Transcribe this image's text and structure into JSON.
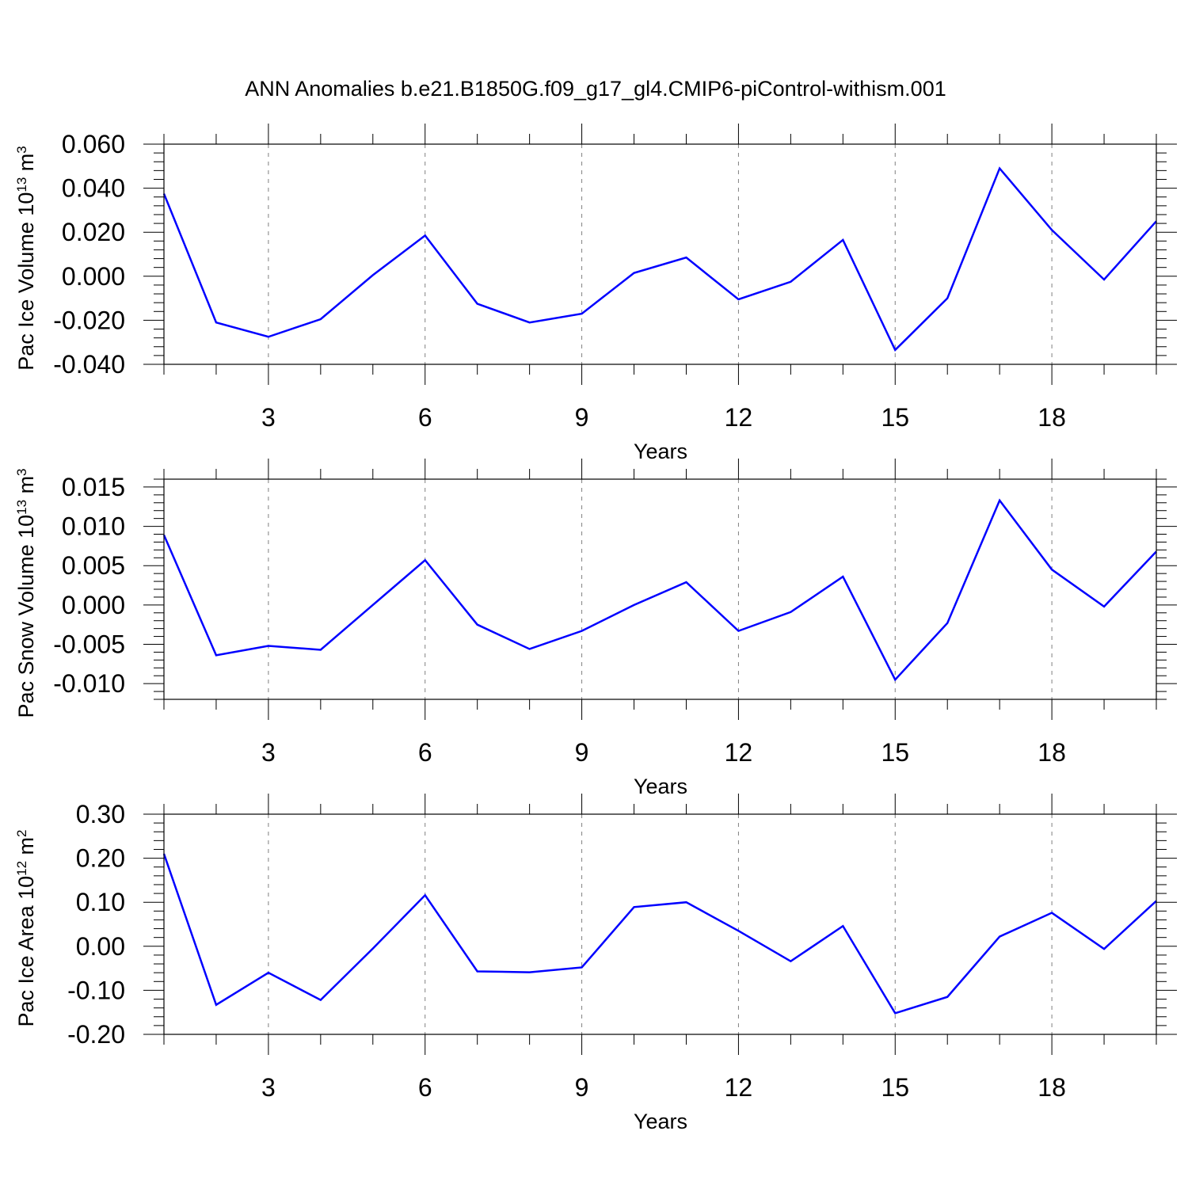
{
  "title": "ANN Anomalies b.e21.B1850G.f09_g17_gl4.CMIP6-piControl-withism.001",
  "colors": {
    "line": "#0000ff",
    "axis": "#000000",
    "grid": "#808080"
  },
  "chart_data": [
    {
      "type": "line",
      "ylabel": {
        "text": "Pac Ice Volume 10",
        "sup": "13",
        "unit": " m",
        "unit_sup": "3"
      },
      "xlabel": "Years",
      "ylim": [
        -0.04,
        0.06
      ],
      "y_ticks": [
        "-0.040",
        "-0.020",
        "0.000",
        "0.020",
        "0.040",
        "0.060"
      ],
      "y_tick_values": [
        -0.04,
        -0.02,
        0.0,
        0.02,
        0.04,
        0.06
      ],
      "xlim": [
        1,
        20
      ],
      "x_ticks": [
        "3",
        "6",
        "9",
        "12",
        "15",
        "18"
      ],
      "x_tick_values": [
        3,
        6,
        9,
        12,
        15,
        18
      ],
      "grid": "dashed vertical at major x ticks",
      "series": [
        {
          "x": [
            1,
            2,
            3,
            4,
            5,
            6,
            7,
            8,
            9,
            10,
            11,
            12,
            13,
            14,
            15,
            16,
            17,
            18,
            19,
            20
          ],
          "values": [
            0.0375,
            -0.021,
            -0.0275,
            -0.0195,
            0.0005,
            0.0185,
            -0.0125,
            -0.021,
            -0.017,
            0.0015,
            0.0085,
            -0.0105,
            -0.0025,
            0.0165,
            -0.0335,
            -0.01,
            0.049,
            0.021,
            -0.0015,
            0.025
          ]
        }
      ]
    },
    {
      "type": "line",
      "ylabel": {
        "text": "Pac Snow Volume 10",
        "sup": "13",
        "unit": " m",
        "unit_sup": "3"
      },
      "xlabel": "Years",
      "ylim": [
        -0.012,
        0.016
      ],
      "y_ticks": [
        "-0.010",
        "-0.005",
        "0.000",
        "0.005",
        "0.010",
        "0.015"
      ],
      "y_tick_values": [
        -0.01,
        -0.005,
        0.0,
        0.005,
        0.01,
        0.015
      ],
      "xlim": [
        1,
        20
      ],
      "x_ticks": [
        "3",
        "6",
        "9",
        "12",
        "15",
        "18"
      ],
      "x_tick_values": [
        3,
        6,
        9,
        12,
        15,
        18
      ],
      "grid": "dashed vertical at major x ticks",
      "series": [
        {
          "x": [
            1,
            2,
            3,
            4,
            5,
            6,
            7,
            8,
            9,
            10,
            11,
            12,
            13,
            14,
            15,
            16,
            17,
            18,
            19,
            20
          ],
          "values": [
            0.0089,
            -0.0064,
            -0.0052,
            -0.0057,
            0.0,
            0.0057,
            -0.0025,
            -0.0056,
            -0.0033,
            0.0,
            0.0029,
            -0.0033,
            -0.0009,
            0.0036,
            -0.0095,
            -0.0023,
            0.0133,
            0.0045,
            -0.0002,
            0.0068
          ]
        }
      ]
    },
    {
      "type": "line",
      "ylabel": {
        "text": "Pac Ice Area 10",
        "sup": "12",
        "unit": " m",
        "unit_sup": "2"
      },
      "xlabel": "Years",
      "ylim": [
        -0.2,
        0.3
      ],
      "y_ticks": [
        "-0.20",
        "-0.10",
        "0.00",
        "0.10",
        "0.20",
        "0.30"
      ],
      "y_tick_values": [
        -0.2,
        -0.1,
        0.0,
        0.1,
        0.2,
        0.3
      ],
      "xlim": [
        1,
        20
      ],
      "x_ticks": [
        "3",
        "6",
        "9",
        "12",
        "15",
        "18"
      ],
      "x_tick_values": [
        3,
        6,
        9,
        12,
        15,
        18
      ],
      "grid": "dashed vertical at major x ticks",
      "series": [
        {
          "x": [
            1,
            2,
            3,
            4,
            5,
            6,
            7,
            8,
            9,
            10,
            11,
            12,
            13,
            14,
            15,
            16,
            17,
            18,
            19,
            20
          ],
          "values": [
            0.21,
            -0.133,
            -0.06,
            -0.122,
            -0.005,
            0.116,
            -0.057,
            -0.059,
            -0.048,
            0.089,
            0.1,
            0.035,
            -0.034,
            0.046,
            -0.152,
            -0.115,
            0.022,
            0.076,
            -0.006,
            0.103
          ]
        }
      ]
    }
  ]
}
